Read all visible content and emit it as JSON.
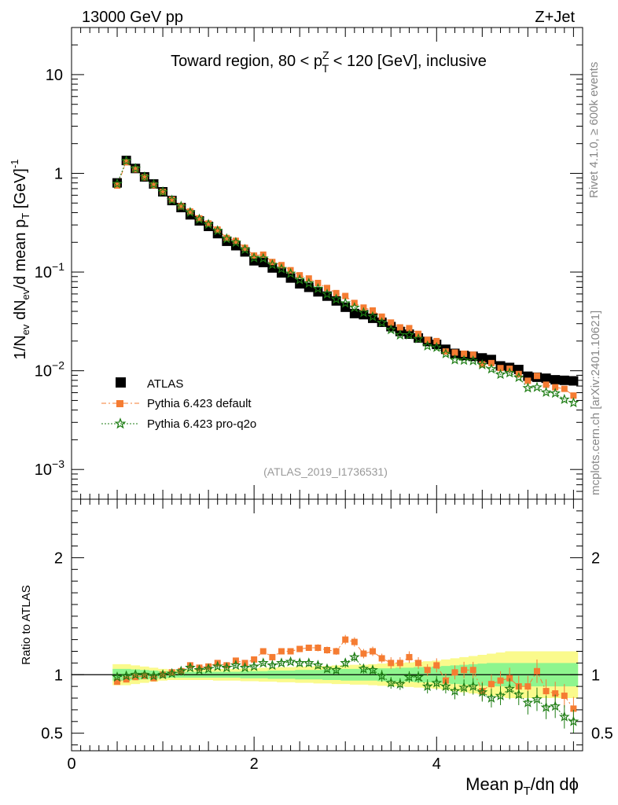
{
  "header": {
    "left": "13000 GeV pp",
    "right": "Z+Jet"
  },
  "side": {
    "rivet": "Rivet 4.1.0, ≥ 600k events",
    "mcplots": "mcplots.cern.ch [arXiv:2401.10621]"
  },
  "chart_data": {
    "type": "scatter",
    "title": "Toward region, 80 < p_T^Z < 120 [GeV], inclusive",
    "title_parts": {
      "a": "Toward region, 80 < p",
      "sub": "T",
      "sup": "Z",
      "b": " < 120 [GeV], inclusive"
    },
    "analysis_id": "(ATLAS_2019_I1736531)",
    "ylabel_parts": {
      "p1": "1/N",
      "s1": "ev",
      "p2": " dN",
      "s2": "ev",
      "p3": "/d mean p",
      "s3": "T",
      "p4": " [GeV]",
      "sup": "-1"
    },
    "xlabel_parts": {
      "a": "Mean p",
      "sub": "T",
      "b": "/dη dϕ"
    },
    "ratio_ylabel": "Ratio to ATLAS",
    "xlim": [
      0,
      5.6
    ],
    "ylim": [
      0.0005,
      30
    ],
    "ratio_ylim": [
      0.35,
      2.5
    ],
    "yscale": "log",
    "x_ticks": [
      "0",
      "2",
      "4"
    ],
    "y_ticks": [
      {
        "base": "10",
        "exp": "−3",
        "v": 0.001
      },
      {
        "base": "10",
        "exp": "−2",
        "v": 0.01
      },
      {
        "base": "10",
        "exp": "−1",
        "v": 0.1
      },
      {
        "base": "1",
        "exp": "",
        "v": 1
      },
      {
        "base": "10",
        "exp": "",
        "v": 10
      }
    ],
    "ratio_ticks": [
      "0.5",
      "1",
      "2"
    ],
    "legend": [
      "ATLAS",
      "Pythia 6.423 default",
      "Pythia 6.423 pro-q2o"
    ],
    "x": [
      0.5,
      0.6,
      0.7,
      0.8,
      0.9,
      1.0,
      1.1,
      1.2,
      1.3,
      1.4,
      1.5,
      1.6,
      1.7,
      1.8,
      1.9,
      2.0,
      2.1,
      2.2,
      2.3,
      2.4,
      2.5,
      2.6,
      2.7,
      2.8,
      2.9,
      3.0,
      3.1,
      3.2,
      3.3,
      3.4,
      3.5,
      3.6,
      3.7,
      3.8,
      3.9,
      4.0,
      4.1,
      4.2,
      4.3,
      4.4,
      4.5,
      4.6,
      4.7,
      4.8,
      4.9,
      5.0,
      5.1,
      5.2,
      5.3,
      5.4,
      5.5
    ],
    "series": [
      {
        "name": "ATLAS",
        "values": [
          0.8,
          1.35,
          1.12,
          0.92,
          0.78,
          0.65,
          0.53,
          0.45,
          0.38,
          0.33,
          0.29,
          0.245,
          0.205,
          0.185,
          0.16,
          0.13,
          0.125,
          0.11,
          0.098,
          0.087,
          0.076,
          0.07,
          0.063,
          0.057,
          0.051,
          0.044,
          0.038,
          0.037,
          0.034,
          0.031,
          0.028,
          0.025,
          0.0235,
          0.0215,
          0.0198,
          0.0185,
          0.0165,
          0.015,
          0.0143,
          0.014,
          0.0135,
          0.013,
          0.0112,
          0.0108,
          0.0103,
          0.0088,
          0.0086,
          0.0084,
          0.0081,
          0.008,
          0.0079
        ],
        "ratio": [
          1,
          1,
          1,
          1,
          1,
          1,
          1,
          1,
          1,
          1,
          1,
          1,
          1,
          1,
          1,
          1,
          1,
          1,
          1,
          1,
          1,
          1,
          1,
          1,
          1,
          1,
          1,
          1,
          1,
          1,
          1,
          1,
          1,
          1,
          1,
          1,
          1,
          1,
          1,
          1,
          1,
          1,
          1,
          1,
          1,
          1,
          1,
          1,
          1,
          1,
          1
        ],
        "band_inner": [
          0.05,
          0.05,
          0.045,
          0.04,
          0.035,
          0.03,
          0.025,
          0.025,
          0.025,
          0.025,
          0.025,
          0.025,
          0.025,
          0.025,
          0.03,
          0.03,
          0.03,
          0.035,
          0.035,
          0.035,
          0.04,
          0.04,
          0.04,
          0.045,
          0.045,
          0.05,
          0.05,
          0.05,
          0.05,
          0.055,
          0.055,
          0.06,
          0.06,
          0.065,
          0.065,
          0.07,
          0.075,
          0.08,
          0.085,
          0.09,
          0.095,
          0.1,
          0.1,
          0.1,
          0.1,
          0.1,
          0.1,
          0.1,
          0.1,
          0.1,
          0.1
        ],
        "band_outer": [
          0.09,
          0.09,
          0.08,
          0.07,
          0.06,
          0.05,
          0.045,
          0.045,
          0.045,
          0.045,
          0.045,
          0.05,
          0.05,
          0.05,
          0.055,
          0.055,
          0.06,
          0.06,
          0.065,
          0.065,
          0.07,
          0.07,
          0.075,
          0.075,
          0.08,
          0.08,
          0.085,
          0.085,
          0.09,
          0.095,
          0.1,
          0.1,
          0.105,
          0.11,
          0.115,
          0.12,
          0.13,
          0.14,
          0.15,
          0.16,
          0.17,
          0.18,
          0.19,
          0.2,
          0.2,
          0.2,
          0.2,
          0.2,
          0.2,
          0.2,
          0.2
        ]
      },
      {
        "name": "Pythia 6.423 default",
        "ratio": [
          0.94,
          0.96,
          0.98,
          0.99,
          0.97,
          1.0,
          1.02,
          1.03,
          1.08,
          1.06,
          1.07,
          1.1,
          1.08,
          1.12,
          1.1,
          1.13,
          1.2,
          1.15,
          1.2,
          1.2,
          1.22,
          1.23,
          1.23,
          1.21,
          1.2,
          1.3,
          1.28,
          1.18,
          1.2,
          1.14,
          1.1,
          1.1,
          1.15,
          1.1,
          1.04,
          1.08,
          0.95,
          1.02,
          1.04,
          1.04,
          0.86,
          0.92,
          0.95,
          0.97,
          0.9,
          0.9,
          1.03,
          0.86,
          0.84,
          0.82,
          0.71
        ],
        "err": [
          0.02,
          0.02,
          0.02,
          0.02,
          0.02,
          0.02,
          0.02,
          0.02,
          0.02,
          0.02,
          0.02,
          0.02,
          0.02,
          0.02,
          0.02,
          0.02,
          0.02,
          0.02,
          0.02,
          0.02,
          0.02,
          0.02,
          0.03,
          0.03,
          0.03,
          0.04,
          0.04,
          0.04,
          0.04,
          0.04,
          0.05,
          0.05,
          0.05,
          0.05,
          0.05,
          0.06,
          0.06,
          0.06,
          0.07,
          0.07,
          0.08,
          0.08,
          0.08,
          0.09,
          0.09,
          0.09,
          0.1,
          0.1,
          0.1,
          0.1,
          0.1
        ]
      },
      {
        "name": "Pythia 6.423 pro-q2o",
        "ratio": [
          0.98,
          0.99,
          1.0,
          1.0,
          0.99,
          1.0,
          1.01,
          1.03,
          1.06,
          1.04,
          1.05,
          1.07,
          1.06,
          1.08,
          1.06,
          1.07,
          1.1,
          1.08,
          1.1,
          1.11,
          1.1,
          1.1,
          1.08,
          1.05,
          1.04,
          1.1,
          1.15,
          1.05,
          1.04,
          0.99,
          0.93,
          0.92,
          0.98,
          0.98,
          0.9,
          0.93,
          0.9,
          0.86,
          0.89,
          0.9,
          0.85,
          0.8,
          0.82,
          0.88,
          0.83,
          0.76,
          0.79,
          0.72,
          0.73,
          0.64,
          0.6
        ],
        "err": [
          0.02,
          0.02,
          0.02,
          0.02,
          0.02,
          0.02,
          0.02,
          0.02,
          0.02,
          0.02,
          0.02,
          0.02,
          0.02,
          0.02,
          0.02,
          0.02,
          0.02,
          0.02,
          0.02,
          0.02,
          0.03,
          0.03,
          0.03,
          0.03,
          0.03,
          0.04,
          0.04,
          0.04,
          0.04,
          0.05,
          0.05,
          0.05,
          0.05,
          0.05,
          0.06,
          0.06,
          0.06,
          0.07,
          0.07,
          0.07,
          0.08,
          0.08,
          0.08,
          0.09,
          0.09,
          0.1,
          0.1,
          0.1,
          0.1,
          0.1,
          0.1
        ]
      }
    ],
    "colors": {
      "data": "#000000",
      "default": "#f57c32",
      "proq2o": "#1e7d14",
      "band_inner": "#8ef58e",
      "band_outer": "#fafa8c"
    }
  }
}
